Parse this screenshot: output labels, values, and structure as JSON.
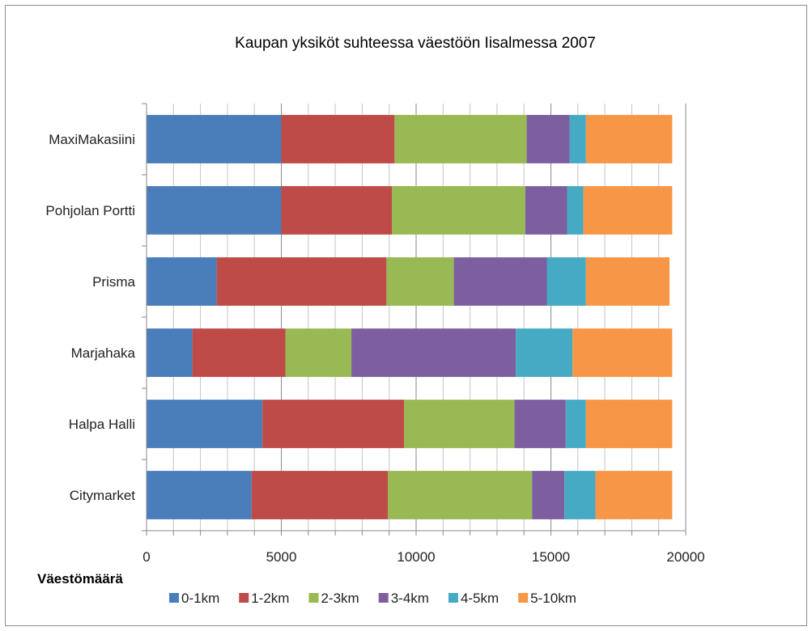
{
  "chart_data": {
    "type": "bar",
    "orientation": "horizontal",
    "stacked": true,
    "title": "Kaupan yksiköt suhteessa väestöön Iisalmessa 2007",
    "xlabel": "Väestömäärä",
    "ylabel": "",
    "xlim": [
      0,
      20000
    ],
    "xticks": [
      0,
      5000,
      10000,
      15000,
      20000
    ],
    "grid": true,
    "legend_position": "bottom",
    "categories": [
      "MaxiMakasiini",
      "Pohjolan Portti",
      "Prisma",
      "Marjahaka",
      "Halpa Halli",
      "Citymarket"
    ],
    "series": [
      {
        "name": "0-1km",
        "color": "#4a7ebb",
        "values": [
          5000,
          5000,
          2600,
          1700,
          4300,
          3900
        ]
      },
      {
        "name": "1-2km",
        "color": "#be4b48",
        "values": [
          4200,
          4100,
          6300,
          3450,
          5250,
          5050
        ]
      },
      {
        "name": "2-3km",
        "color": "#98b954",
        "values": [
          4900,
          4950,
          2500,
          2450,
          4100,
          5350
        ]
      },
      {
        "name": "3-4km",
        "color": "#7d5fa0",
        "values": [
          1600,
          1550,
          3450,
          6100,
          1900,
          1200
        ]
      },
      {
        "name": "4-5km",
        "color": "#46aac5",
        "values": [
          600,
          600,
          1450,
          2100,
          750,
          1150
        ]
      },
      {
        "name": "5-10km",
        "color": "#f79646",
        "values": [
          3200,
          3300,
          3100,
          3700,
          3200,
          2850
        ]
      }
    ]
  }
}
